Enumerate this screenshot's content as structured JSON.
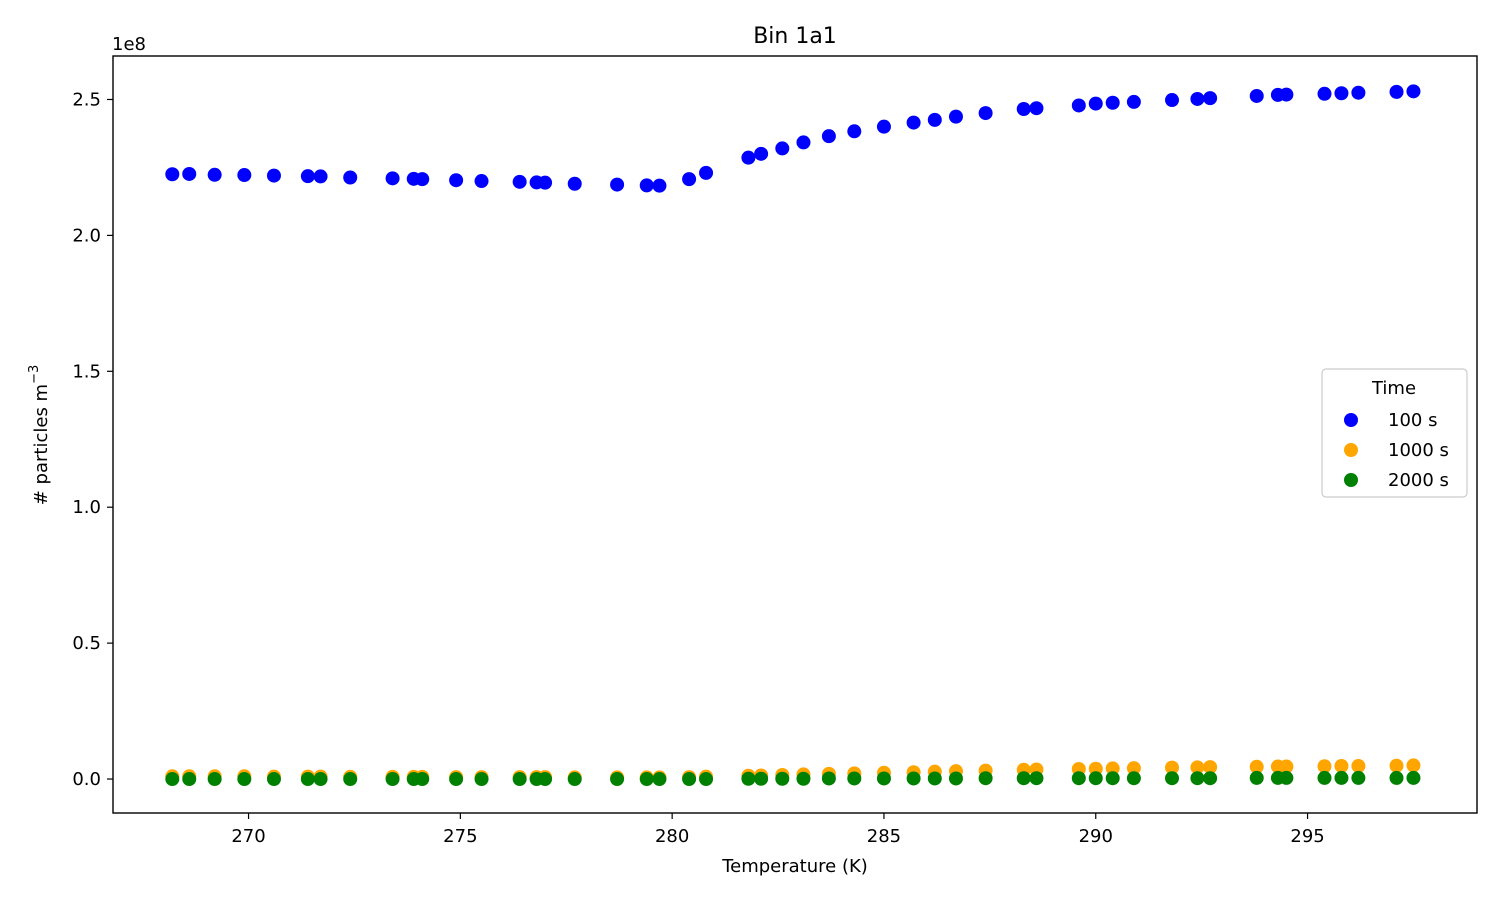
{
  "chart_data": {
    "type": "scatter",
    "title": "Bin 1a1",
    "xlabel": "Temperature (K)",
    "ylabel_main": "# particles m",
    "ylabel_sup": "−3",
    "y_offset_label": "1e8",
    "xlim": [
      266.8,
      299.0
    ],
    "ylim": [
      -0.125,
      2.66
    ],
    "grid": false,
    "legend_position": "center-right",
    "legend_title": "Time",
    "x_ticks": [
      270,
      275,
      280,
      285,
      290,
      295
    ],
    "x_tick_labels": [
      "270",
      "275",
      "280",
      "285",
      "290",
      "295"
    ],
    "y_ticks": [
      0.0,
      0.5,
      1.0,
      1.5,
      2.0,
      2.5
    ],
    "y_tick_labels": [
      "0.0",
      "0.5",
      "1.0",
      "1.5",
      "2.0",
      "2.5"
    ],
    "x": [
      268.2,
      268.6,
      269.2,
      269.9,
      270.6,
      271.4,
      271.7,
      272.4,
      273.4,
      273.9,
      274.1,
      274.9,
      275.5,
      276.4,
      276.8,
      277.0,
      277.7,
      278.7,
      279.4,
      279.7,
      280.4,
      280.8,
      281.8,
      282.1,
      282.6,
      283.1,
      283.7,
      284.3,
      285.0,
      285.7,
      286.2,
      286.7,
      287.4,
      288.3,
      288.6,
      289.6,
      290.0,
      290.4,
      290.9,
      291.8,
      292.4,
      292.7,
      293.8,
      294.3,
      294.5,
      295.4,
      295.8,
      296.2,
      297.1,
      297.5
    ],
    "series": [
      {
        "name": "100 s",
        "color": "#0000ff",
        "values": [
          2.225,
          2.226,
          2.223,
          2.222,
          2.22,
          2.218,
          2.217,
          2.213,
          2.21,
          2.208,
          2.207,
          2.203,
          2.2,
          2.197,
          2.195,
          2.194,
          2.19,
          2.187,
          2.184,
          2.183,
          2.207,
          2.23,
          2.286,
          2.3,
          2.32,
          2.342,
          2.365,
          2.383,
          2.4,
          2.415,
          2.425,
          2.437,
          2.45,
          2.465,
          2.468,
          2.478,
          2.485,
          2.488,
          2.491,
          2.498,
          2.502,
          2.505,
          2.513,
          2.517,
          2.518,
          2.521,
          2.523,
          2.525,
          2.528,
          2.53
        ]
      },
      {
        "name": "1000 s",
        "color": "#ffa500",
        "values": [
          0.01,
          0.01,
          0.01,
          0.01,
          0.009,
          0.009,
          0.009,
          0.008,
          0.008,
          0.008,
          0.008,
          0.007,
          0.007,
          0.007,
          0.007,
          0.007,
          0.006,
          0.006,
          0.006,
          0.006,
          0.007,
          0.009,
          0.012,
          0.013,
          0.015,
          0.017,
          0.019,
          0.021,
          0.023,
          0.025,
          0.027,
          0.029,
          0.031,
          0.034,
          0.035,
          0.037,
          0.038,
          0.039,
          0.04,
          0.042,
          0.043,
          0.044,
          0.045,
          0.046,
          0.046,
          0.047,
          0.048,
          0.048,
          0.049,
          0.05
        ]
      },
      {
        "name": "2000 s",
        "color": "#008000",
        "values": [
          0.0,
          0.0,
          0.0,
          0.0,
          0.0,
          0.0,
          0.0,
          0.0,
          0.0,
          0.0,
          0.0,
          0.0,
          0.0,
          0.0,
          0.0,
          0.0,
          0.0,
          0.0,
          0.0,
          0.0,
          0.0,
          0.0,
          0.001,
          0.001,
          0.001,
          0.001,
          0.002,
          0.002,
          0.002,
          0.002,
          0.002,
          0.002,
          0.003,
          0.003,
          0.003,
          0.003,
          0.003,
          0.003,
          0.003,
          0.003,
          0.003,
          0.003,
          0.004,
          0.004,
          0.004,
          0.004,
          0.004,
          0.004,
          0.004,
          0.004
        ]
      }
    ]
  }
}
